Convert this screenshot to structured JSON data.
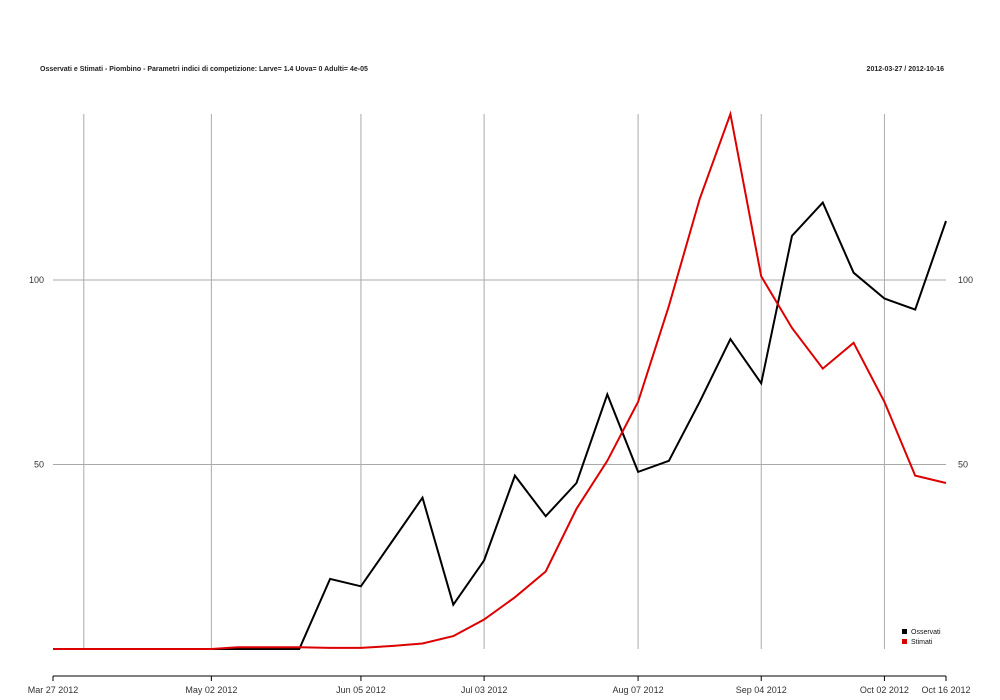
{
  "header": {
    "title": "Osservati e Stimati - Piombino - Parametri indici di competizione: Larve= 1.4 Uova= 0 Adulti= 4e-05",
    "date_range": "2012-03-27 / 2012-10-16"
  },
  "chart_data": {
    "type": "line",
    "title": "Osservati e Stimati - Piombino - Parametri indici di competizione: Larve= 1.4 Uova= 0 Adulti= 4e-05",
    "x_type": "date",
    "xlim": [
      "2012-03-27",
      "2012-10-16"
    ],
    "ylim": [
      0,
      145
    ],
    "grid": true,
    "legend_position": "bottom-right",
    "x_ticks": [
      {
        "date": "2012-03-27",
        "label": "Mar 27 2012"
      },
      {
        "date": "2012-05-02",
        "label": "May 02 2012"
      },
      {
        "date": "2012-06-05",
        "label": "Jun 05 2012"
      },
      {
        "date": "2012-07-03",
        "label": "Jul 03 2012"
      },
      {
        "date": "2012-08-07",
        "label": "Aug 07 2012"
      },
      {
        "date": "2012-09-04",
        "label": "Sep 04 2012"
      },
      {
        "date": "2012-10-02",
        "label": "Oct 02 2012"
      },
      {
        "date": "2012-10-16",
        "label": "Oct 16 2012"
      }
    ],
    "v_grid_dates": [
      "2012-04-03",
      "2012-05-02",
      "2012-06-05",
      "2012-07-03",
      "2012-08-07",
      "2012-09-04",
      "2012-10-02"
    ],
    "y_ticks": [
      50,
      100
    ],
    "series": [
      {
        "name": "Osservati",
        "color": "#000000",
        "points": [
          [
            "2012-03-27",
            0
          ],
          [
            "2012-04-03",
            0
          ],
          [
            "2012-04-10",
            0
          ],
          [
            "2012-04-17",
            0
          ],
          [
            "2012-04-24",
            0
          ],
          [
            "2012-05-02",
            0
          ],
          [
            "2012-05-08",
            0
          ],
          [
            "2012-05-15",
            0
          ],
          [
            "2012-05-22",
            0
          ],
          [
            "2012-05-29",
            19
          ],
          [
            "2012-06-05",
            17
          ],
          [
            "2012-06-12",
            29
          ],
          [
            "2012-06-19",
            41
          ],
          [
            "2012-06-26",
            12
          ],
          [
            "2012-07-03",
            24
          ],
          [
            "2012-07-10",
            47
          ],
          [
            "2012-07-17",
            36
          ],
          [
            "2012-07-24",
            45
          ],
          [
            "2012-07-31",
            69
          ],
          [
            "2012-08-07",
            48
          ],
          [
            "2012-08-14",
            51
          ],
          [
            "2012-08-21",
            67
          ],
          [
            "2012-08-28",
            84
          ],
          [
            "2012-09-04",
            72
          ],
          [
            "2012-09-11",
            112
          ],
          [
            "2012-09-18",
            121
          ],
          [
            "2012-09-25",
            102
          ],
          [
            "2012-10-02",
            95
          ],
          [
            "2012-10-09",
            92
          ],
          [
            "2012-10-16",
            116
          ]
        ]
      },
      {
        "name": "Stimati",
        "color": "#dd0000",
        "points": [
          [
            "2012-03-27",
            0
          ],
          [
            "2012-04-03",
            0
          ],
          [
            "2012-04-10",
            0
          ],
          [
            "2012-04-17",
            0
          ],
          [
            "2012-04-24",
            0
          ],
          [
            "2012-05-02",
            0
          ],
          [
            "2012-05-08",
            0.5
          ],
          [
            "2012-05-15",
            0.5
          ],
          [
            "2012-05-22",
            0.5
          ],
          [
            "2012-05-29",
            0.3
          ],
          [
            "2012-06-05",
            0.3
          ],
          [
            "2012-06-12",
            0.8
          ],
          [
            "2012-06-19",
            1.5
          ],
          [
            "2012-06-26",
            3.5
          ],
          [
            "2012-07-03",
            8
          ],
          [
            "2012-07-10",
            14
          ],
          [
            "2012-07-17",
            21
          ],
          [
            "2012-07-24",
            38
          ],
          [
            "2012-07-31",
            51
          ],
          [
            "2012-08-07",
            67
          ],
          [
            "2012-08-14",
            93
          ],
          [
            "2012-08-21",
            122
          ],
          [
            "2012-08-28",
            145
          ],
          [
            "2012-09-04",
            101
          ],
          [
            "2012-09-11",
            87
          ],
          [
            "2012-09-18",
            76
          ],
          [
            "2012-09-25",
            83
          ],
          [
            "2012-10-02",
            67
          ],
          [
            "2012-10-09",
            47
          ],
          [
            "2012-10-16",
            45
          ]
        ]
      }
    ]
  }
}
